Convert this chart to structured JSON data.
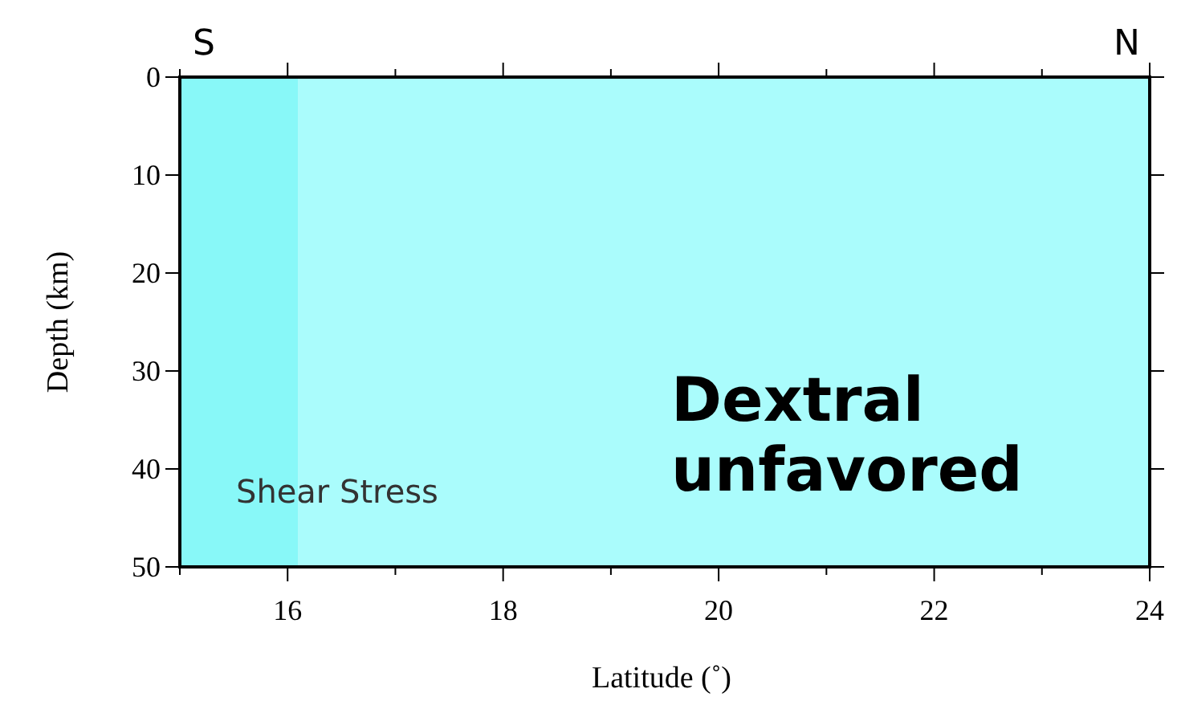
{
  "chart_data": {
    "type": "scatter",
    "xlabel": "Latitude (˚)",
    "ylabel": "Depth (km)",
    "xlim": [
      15,
      24
    ],
    "ylim": [
      50,
      0
    ],
    "xticks": [
      {
        "value": 15,
        "label": null
      },
      16,
      {
        "value": 17,
        "label": null
      },
      18,
      {
        "value": 19,
        "label": null
      },
      20,
      {
        "value": 21,
        "label": null
      },
      22,
      {
        "value": 23,
        "label": null
      },
      24
    ],
    "yticks": [
      0,
      10,
      20,
      30,
      40,
      50
    ],
    "bands": [
      {
        "axis": "x",
        "from": 15,
        "to": 16.1,
        "color": "#88f8f8"
      },
      {
        "axis": "x",
        "from": 16.1,
        "to": 24,
        "color": "#aafcfc"
      }
    ],
    "annotations": [
      "S",
      "N",
      "Shear Stress",
      "Dextral unfavored"
    ],
    "grid": false
  }
}
